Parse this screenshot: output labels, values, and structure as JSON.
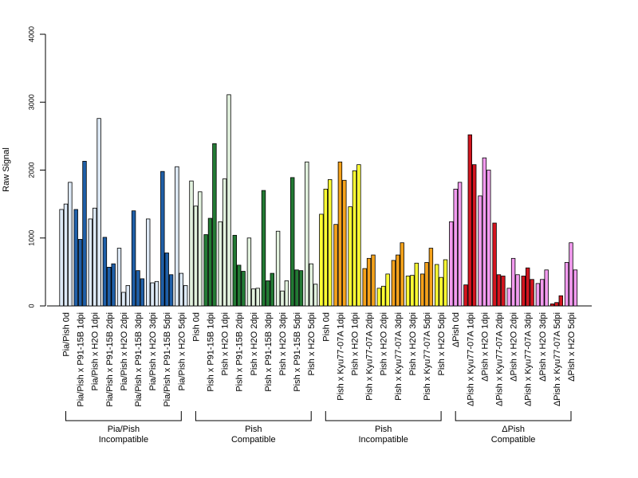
{
  "chart_data": {
    "type": "bar",
    "ylabel": "Raw Signal",
    "ylim": [
      0,
      4000
    ],
    "yticks": [
      0,
      1000,
      2000,
      3000,
      4000
    ],
    "grid": false,
    "categories": [
      "Pia/Pish 0d",
      "Pia/Pish x P91-15B 1dpi",
      "Pia/Pish x H2O 1dpi",
      "Pia/Pish x P91-15B 2dpi",
      "Pia/Pish x H2O 2dpi",
      "Pia/Pish x P91-15B 3dpi",
      "Pia/Pish x H2O 3dpi",
      "Pia/Pish x P91-15B 5dpi",
      "Pia/Pish x H2O 5dpi",
      "Pish 0d",
      "Pish x P91-15B 1dpi",
      "Pish x H2O 1dpi",
      "Pish x P91-15B 2dpi",
      "Pish x H2O 2dpi",
      "Pish x P91-15B 3dpi",
      "Pish x H2O 3dpi",
      "Pish x P91-15B 5dpi",
      "Pish x H2O 5dpi",
      "Pish 0d",
      "Pish x Kyu77-07A 1dpi",
      "Pish x H2O 1dpi",
      "Pish x Kyu77-07A 2dpi",
      "Pish x H2O 2dpi",
      "Pish x Kyu77-07A 3dpi",
      "Pish x H2O 3dpi",
      "Pish x Kyu77-07A 5dpi",
      "Pish x H2O 5dpi",
      "ΔPish 0d",
      "ΔPish x Kyu77-07A 1dpi",
      "ΔPish x H2O 1dpi",
      "ΔPish x Kyu77-07A 2dpi",
      "ΔPish x H2O 2dpi",
      "ΔPish x Kyu77-07A 3dpi",
      "ΔPish x H2O 3dpi",
      "ΔPish x Kyu77-07A 5dpi",
      "ΔPish x H2O 5dpi"
    ],
    "values": [
      [
        1420,
        1500,
        1820
      ],
      [
        1420,
        980,
        2130
      ],
      [
        1280,
        1440,
        2760
      ],
      [
        1010,
        570,
        620
      ],
      [
        850,
        200,
        300
      ],
      [
        1400,
        520,
        400
      ],
      [
        1280,
        340,
        360
      ],
      [
        1980,
        780,
        460
      ],
      [
        2050,
        480,
        300
      ],
      [
        1840,
        1470,
        1680
      ],
      [
        1050,
        1290,
        2390
      ],
      [
        1240,
        1870,
        3110
      ],
      [
        1040,
        600,
        510
      ],
      [
        1000,
        250,
        260
      ],
      [
        1700,
        370,
        480
      ],
      [
        1100,
        220,
        370
      ],
      [
        1890,
        530,
        520
      ],
      [
        2120,
        620,
        320
      ],
      [
        1350,
        1720,
        1860
      ],
      [
        1200,
        2120,
        1850
      ],
      [
        1460,
        1990,
        2080
      ],
      [
        550,
        700,
        750
      ],
      [
        260,
        290,
        470
      ],
      [
        670,
        750,
        930
      ],
      [
        440,
        450,
        630
      ],
      [
        470,
        640,
        850
      ],
      [
        610,
        420,
        680
      ],
      [
        1240,
        1720,
        1820
      ],
      [
        310,
        2520,
        2080
      ],
      [
        1620,
        2180,
        2000
      ],
      [
        1220,
        460,
        440
      ],
      [
        260,
        700,
        460
      ],
      [
        440,
        560,
        390
      ],
      [
        330,
        390,
        530
      ],
      [
        30,
        50,
        150
      ],
      [
        640,
        930,
        530
      ]
    ],
    "bar_colors": {
      "group1_infected": "#1f5fa8",
      "group1_mock": "#dde9f6",
      "group2_infected": "#237a34",
      "group2_mock": "#e2f2de",
      "group3_infected": "#f5a21b",
      "group3_mock": "#ffff33",
      "group4_infected": "#d3151f",
      "group4_mock": "#f29bef"
    },
    "groups": [
      {
        "line1": "Pia/Pish",
        "line2": "Incompatible",
        "start": 0,
        "end": 8
      },
      {
        "line1": "Pish",
        "line2": "Compatible",
        "start": 9,
        "end": 17
      },
      {
        "line1": "Pish",
        "line2": "Incompatible",
        "start": 18,
        "end": 26
      },
      {
        "line1": "ΔPish",
        "line2": "Compatible",
        "start": 27,
        "end": 35
      }
    ]
  }
}
